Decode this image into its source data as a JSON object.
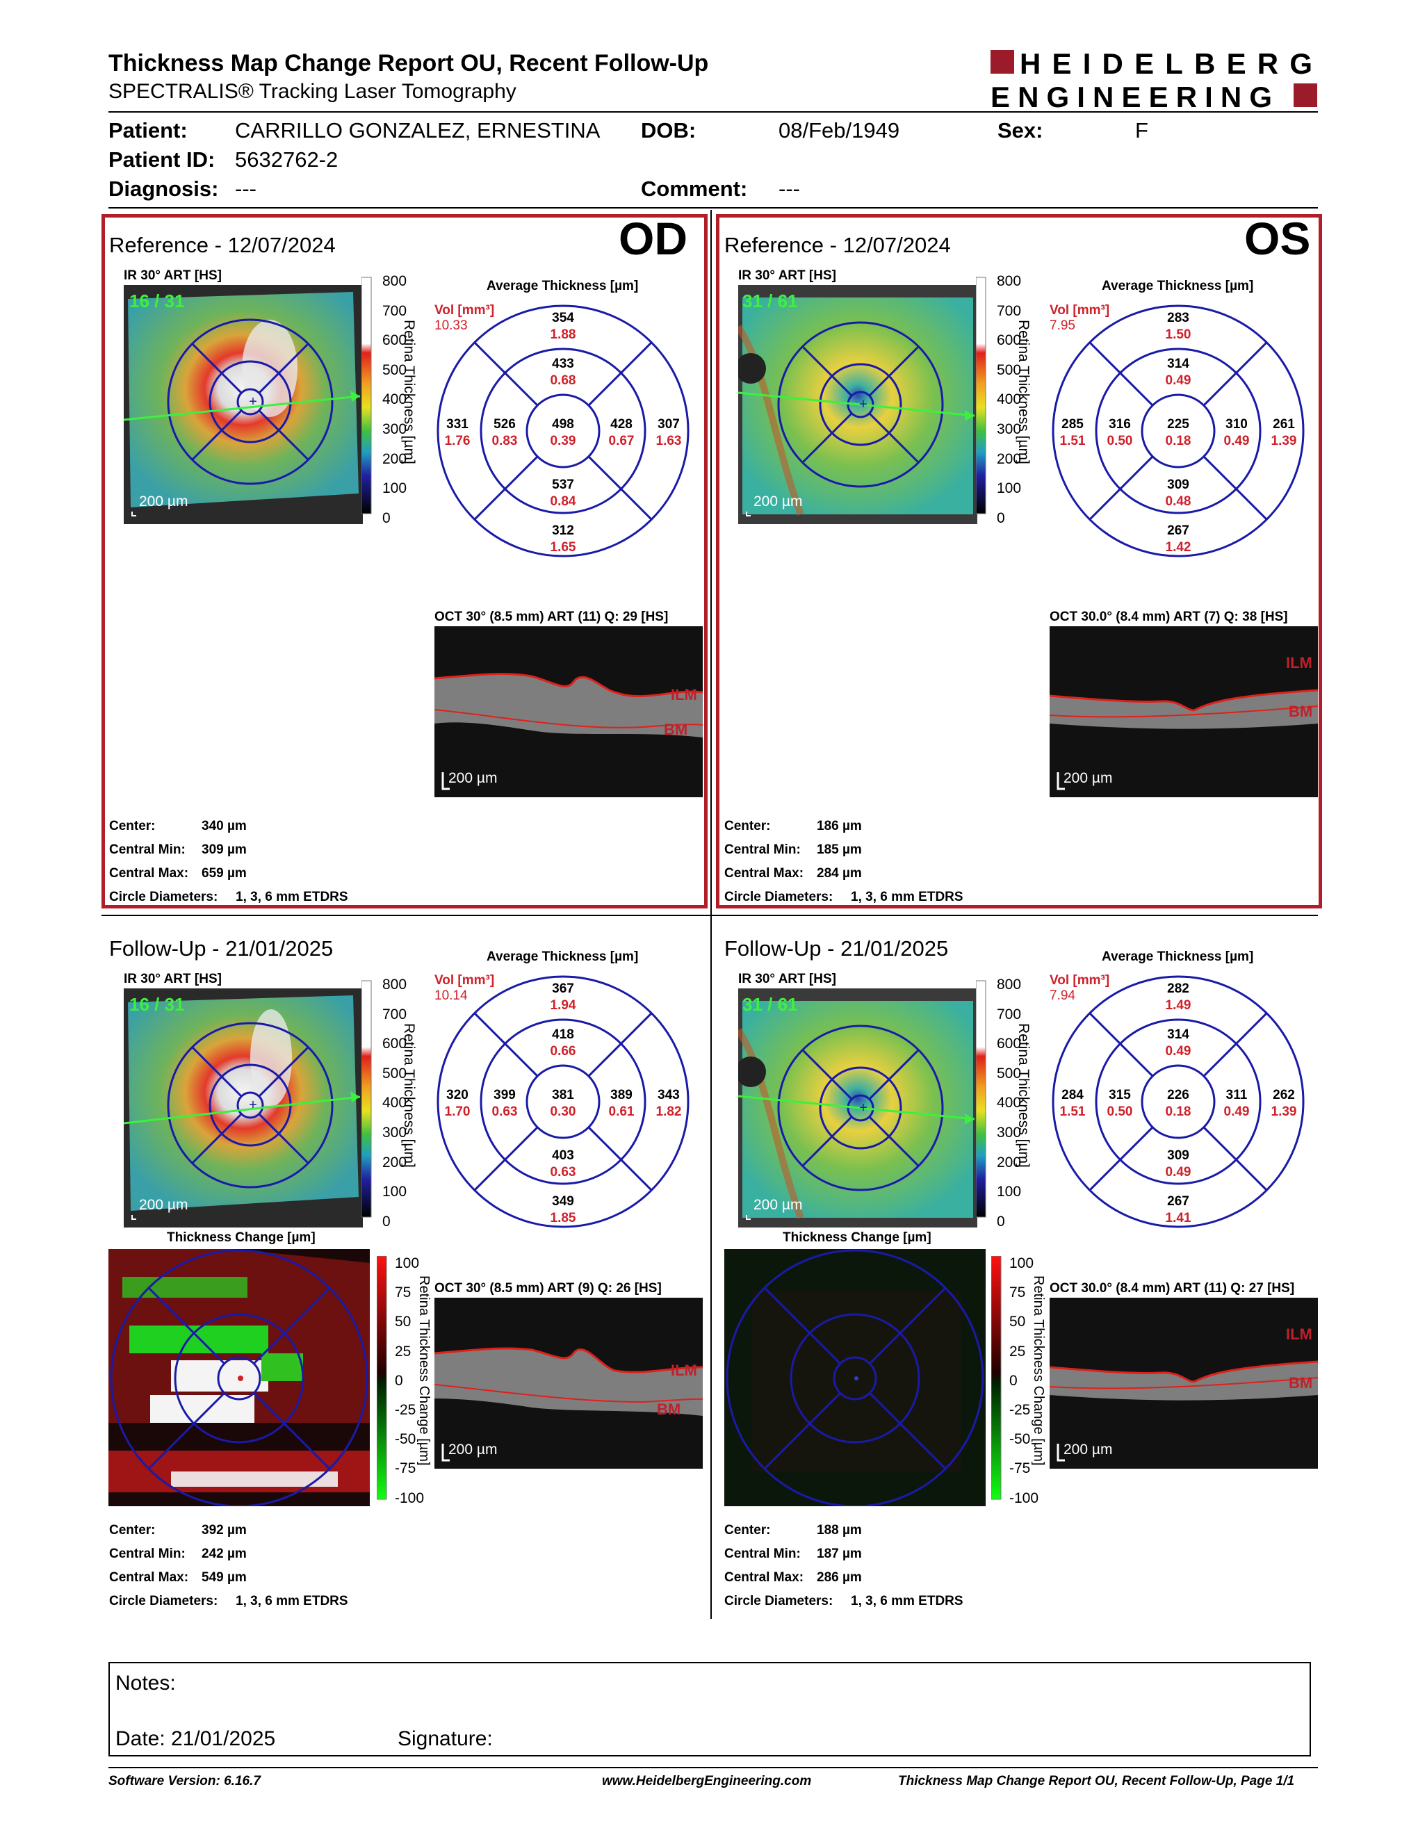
{
  "report": {
    "title": "Thickness Map Change Report OU, Recent Follow-Up",
    "subtitle": "SPECTRALIS® Tracking Laser Tomography",
    "logo_line1": "HEIDELBERG",
    "logo_line2": "ENGINEERING"
  },
  "patient": {
    "patient_label": "Patient:",
    "name": "CARRILLO GONZALEZ, ERNESTINA",
    "dob_label": "DOB:",
    "dob": "08/Feb/1949",
    "sex_label": "Sex:",
    "sex": "F",
    "id_label": "Patient ID:",
    "id": "5632762-2",
    "diagnosis_label": "Diagnosis:",
    "diagnosis": "---",
    "comment_label": "Comment:",
    "comment": "---"
  },
  "labels": {
    "ir_title": "IR 30° ART [HS]",
    "avg_thickness": "Average Thickness [µm]",
    "vol": "Vol [mm³]",
    "retina_thickness": "Retina Thickness [µm]",
    "retina_thickness_change": "Retina Thickness Change [µm]",
    "thickness_change": "Thickness Change [µm]",
    "scale_bar": "200 µm",
    "center": "Center:",
    "central_min": "Central Min:",
    "central_max": "Central Max:",
    "circle_diameters": "Circle Diameters:",
    "circle_value": "1, 3, 6 mm ETDRS",
    "ilm": "ILM",
    "bm": "BM",
    "scale_ticks": [
      "800",
      "700",
      "600",
      "500",
      "400",
      "300",
      "200",
      "100",
      "0"
    ],
    "change_ticks": [
      "100",
      "75",
      "50",
      "25",
      "0",
      "-25",
      "-50",
      "-75",
      "-100"
    ]
  },
  "panels": {
    "od_ref": {
      "title": "Reference - 12/07/2024",
      "eye": "OD",
      "frames": "16 / 31",
      "vol": "10.33",
      "oct_title": "OCT 30° (8.5 mm) ART (11) Q: 29 [HS]",
      "center_val": "340 µm",
      "min_val": "309 µm",
      "max_val": "659 µm",
      "etdrs": {
        "top_o": [
          "354",
          "1.88"
        ],
        "top_i": [
          "433",
          "0.68"
        ],
        "left_o": [
          "331",
          "1.76"
        ],
        "left_i": [
          "526",
          "0.83"
        ],
        "center": [
          "498",
          "0.39"
        ],
        "right_i": [
          "428",
          "0.67"
        ],
        "right_o": [
          "307",
          "1.63"
        ],
        "bot_i": [
          "537",
          "0.84"
        ],
        "bot_o": [
          "312",
          "1.65"
        ]
      }
    },
    "os_ref": {
      "title": "Reference - 12/07/2024",
      "eye": "OS",
      "frames": "31 / 61",
      "vol": "7.95",
      "oct_title": "OCT 30.0° (8.4 mm) ART (7) Q: 38 [HS]",
      "center_val": "186 µm",
      "min_val": "185 µm",
      "max_val": "284 µm",
      "etdrs": {
        "top_o": [
          "283",
          "1.50"
        ],
        "top_i": [
          "314",
          "0.49"
        ],
        "left_o": [
          "285",
          "1.51"
        ],
        "left_i": [
          "316",
          "0.50"
        ],
        "center": [
          "225",
          "0.18"
        ],
        "right_i": [
          "310",
          "0.49"
        ],
        "right_o": [
          "261",
          "1.39"
        ],
        "bot_i": [
          "309",
          "0.48"
        ],
        "bot_o": [
          "267",
          "1.42"
        ]
      }
    },
    "od_fu": {
      "title": "Follow-Up - 21/01/2025",
      "frames": "16 / 31",
      "vol": "10.14",
      "oct_title": "OCT 30° (8.5 mm) ART (9) Q: 26 [HS]",
      "center_val": "392 µm",
      "min_val": "242 µm",
      "max_val": "549 µm",
      "etdrs": {
        "top_o": [
          "367",
          "1.94"
        ],
        "top_i": [
          "418",
          "0.66"
        ],
        "left_o": [
          "320",
          "1.70"
        ],
        "left_i": [
          "399",
          "0.63"
        ],
        "center": [
          "381",
          "0.30"
        ],
        "right_i": [
          "389",
          "0.61"
        ],
        "right_o": [
          "343",
          "1.82"
        ],
        "bot_i": [
          "403",
          "0.63"
        ],
        "bot_o": [
          "349",
          "1.85"
        ]
      }
    },
    "os_fu": {
      "title": "Follow-Up - 21/01/2025",
      "frames": "31 / 61",
      "vol": "7.94",
      "oct_title": "OCT 30.0° (8.4 mm) ART (11) Q: 27 [HS]",
      "center_val": "188 µm",
      "min_val": "187 µm",
      "max_val": "286 µm",
      "etdrs": {
        "top_o": [
          "282",
          "1.49"
        ],
        "top_i": [
          "314",
          "0.49"
        ],
        "left_o": [
          "284",
          "1.51"
        ],
        "left_i": [
          "315",
          "0.50"
        ],
        "center": [
          "226",
          "0.18"
        ],
        "right_i": [
          "311",
          "0.49"
        ],
        "right_o": [
          "262",
          "1.39"
        ],
        "bot_i": [
          "309",
          "0.49"
        ],
        "bot_o": [
          "267",
          "1.41"
        ]
      }
    }
  },
  "notes": {
    "notes_label": "Notes:",
    "date_label": "Date: 21/01/2025",
    "signature_label": "Signature:"
  },
  "footer": {
    "software": "Software Version: 6.16.7",
    "website": "www.HeidelbergEngineering.com",
    "page": "Thickness Map Change Report OU, Recent Follow-Up, Page 1/1"
  },
  "colors": {
    "accent_red": "#b01e2a",
    "circle_blue": "#1a1aa8",
    "value_red": "#d0202a"
  }
}
